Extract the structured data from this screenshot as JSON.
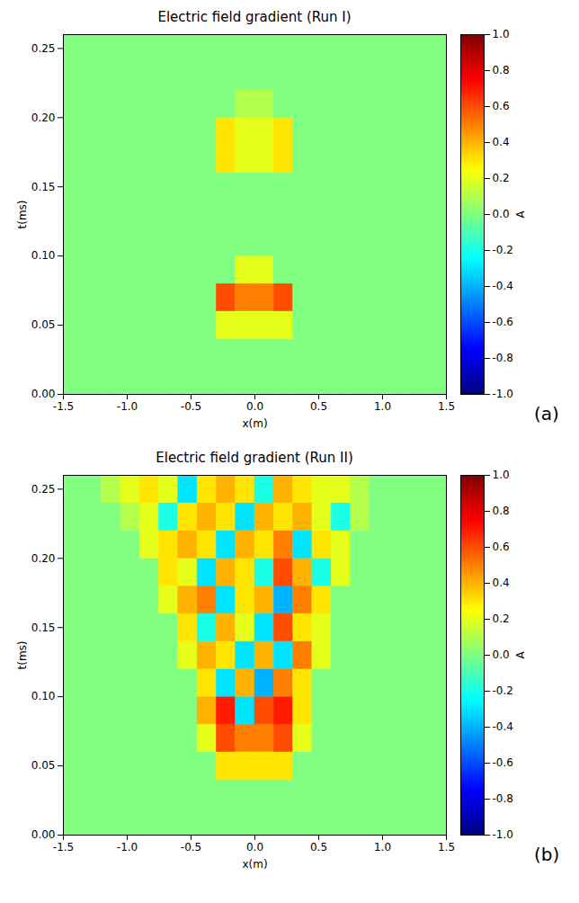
{
  "chart_data": [
    {
      "type": "heatmap",
      "title": "Electric field gradient (Run I)",
      "panel_label": "(a)",
      "x_label": "x(m)",
      "y_label": "t(ms)",
      "color": "jet",
      "xlim": [
        -1.5,
        1.5
      ],
      "xticks": [
        -1.5,
        {
          "value": -1,
          "label": "-1.0"
        },
        -0.5,
        {
          "value": 0,
          "label": "0.0"
        },
        0.5,
        {
          "value": 1,
          "label": "1.0"
        },
        1.5
      ],
      "ylim": [
        0,
        0.26
      ],
      "yticks": [
        {
          "value": 0,
          "label": "0.00"
        },
        0.05,
        {
          "value": 0.1,
          "label": "0.10"
        },
        0.15,
        {
          "value": 0.2,
          "label": "0.20"
        },
        0.25
      ],
      "x_bins": [
        -1.5,
        -1.35,
        -1.2,
        -1.05,
        -0.9,
        -0.75,
        -0.6,
        -0.45,
        -0.3,
        -0.15,
        0,
        0.15,
        0.3,
        0.45,
        0.6,
        0.75,
        0.9,
        1.05,
        1.2,
        1.35,
        1.5
      ],
      "y_bins": [
        0,
        0.02,
        0.04,
        0.06,
        0.08,
        0.1,
        0.12,
        0.14,
        0.16,
        0.18,
        0.2,
        0.22,
        0.24,
        0.26
      ],
      "values": [
        [
          0,
          0,
          0,
          0,
          0,
          0,
          0,
          0,
          0,
          0,
          0,
          0,
          0,
          0,
          0,
          0,
          0,
          0,
          0,
          0
        ],
        [
          0,
          0,
          0,
          0,
          0,
          0,
          0,
          0,
          0,
          0,
          0,
          0,
          0,
          0,
          0,
          0,
          0,
          0,
          0,
          0
        ],
        [
          0,
          0,
          0,
          0,
          0,
          0,
          0,
          0,
          0.2,
          0.2,
          0.2,
          0.2,
          0,
          0,
          0,
          0,
          0,
          0,
          0,
          0
        ],
        [
          0,
          0,
          0,
          0,
          0,
          0,
          0,
          0,
          0.6,
          0.5,
          0.5,
          0.6,
          0,
          0,
          0,
          0,
          0,
          0,
          0,
          0
        ],
        [
          0,
          0,
          0,
          0,
          0,
          0,
          0,
          0,
          0,
          0.2,
          0.2,
          0,
          0,
          0,
          0,
          0,
          0,
          0,
          0,
          0
        ],
        [
          0,
          0,
          0,
          0,
          0,
          0,
          0,
          0,
          0,
          0,
          0,
          0,
          0,
          0,
          0,
          0,
          0,
          0,
          0,
          0
        ],
        [
          0,
          0,
          0,
          0,
          0,
          0,
          0,
          0,
          0,
          0,
          0,
          0,
          0,
          0,
          0,
          0,
          0,
          0,
          0,
          0
        ],
        [
          0,
          0,
          0,
          0,
          0,
          0,
          0,
          0,
          0,
          0,
          0,
          0,
          0,
          0,
          0,
          0,
          0,
          0,
          0,
          0
        ],
        [
          0,
          0,
          0,
          0,
          0,
          0,
          0,
          0,
          0.3,
          0.2,
          0.2,
          0.3,
          0,
          0,
          0,
          0,
          0,
          0,
          0,
          0
        ],
        [
          0,
          0,
          0,
          0,
          0,
          0,
          0,
          0,
          0.3,
          0.2,
          0.2,
          0.3,
          0,
          0,
          0,
          0,
          0,
          0,
          0,
          0
        ],
        [
          0,
          0,
          0,
          0,
          0,
          0,
          0,
          0,
          0,
          0.1,
          0.1,
          0,
          0,
          0,
          0,
          0,
          0,
          0,
          0,
          0
        ],
        [
          0,
          0,
          0,
          0,
          0,
          0,
          0,
          0,
          0,
          0,
          0,
          0,
          0,
          0,
          0,
          0,
          0,
          0,
          0,
          0
        ],
        [
          0,
          0,
          0,
          0,
          0,
          0,
          0,
          0,
          0,
          0,
          0,
          0,
          0,
          0,
          0,
          0,
          0,
          0,
          0,
          0
        ]
      ],
      "colorbar": {
        "label": "A",
        "range": [
          -1,
          1
        ],
        "ticks": [
          {
            "value": -1,
            "label": "-1.0"
          },
          -0.8,
          -0.6,
          -0.4,
          -0.2,
          {
            "value": 0,
            "label": "0.0"
          },
          0.2,
          0.4,
          0.6,
          0.8,
          {
            "value": 1,
            "label": "1.0"
          }
        ]
      }
    },
    {
      "type": "heatmap",
      "title": "Electric field gradient (Run II)",
      "panel_label": "(b)",
      "x_label": "x(m)",
      "y_label": "t(ms)",
      "color": "jet",
      "xlim": [
        -1.5,
        1.5
      ],
      "xticks": [
        -1.5,
        {
          "value": -1,
          "label": "-1.0"
        },
        -0.5,
        {
          "value": 0,
          "label": "0.0"
        },
        0.5,
        {
          "value": 1,
          "label": "1.0"
        },
        1.5
      ],
      "ylim": [
        0,
        0.26
      ],
      "yticks": [
        {
          "value": 0,
          "label": "0.00"
        },
        0.05,
        {
          "value": 0.1,
          "label": "0.10"
        },
        0.15,
        {
          "value": 0.2,
          "label": "0.20"
        },
        0.25
      ],
      "x_bins": [
        -1.5,
        -1.35,
        -1.2,
        -1.05,
        -0.9,
        -0.75,
        -0.6,
        -0.45,
        -0.3,
        -0.15,
        0,
        0.15,
        0.3,
        0.45,
        0.6,
        0.75,
        0.9,
        1.05,
        1.2,
        1.35,
        1.5
      ],
      "y_bins": [
        0,
        0.02,
        0.04,
        0.06,
        0.08,
        0.1,
        0.12,
        0.14,
        0.16,
        0.18,
        0.2,
        0.22,
        0.24,
        0.26
      ],
      "values": [
        [
          0,
          0,
          0,
          0,
          0,
          0,
          0,
          0,
          0,
          0,
          0,
          0,
          0,
          0,
          0,
          0,
          0,
          0,
          0,
          0
        ],
        [
          0,
          0,
          0,
          0,
          0,
          0,
          0,
          0,
          0,
          0,
          0,
          0,
          0,
          0,
          0,
          0,
          0,
          0,
          0,
          0
        ],
        [
          0,
          0,
          0,
          0,
          0,
          0,
          0,
          0,
          0.3,
          0.3,
          0.3,
          0.3,
          0,
          0,
          0,
          0,
          0,
          0,
          0,
          0
        ],
        [
          0,
          0,
          0,
          0,
          0,
          0,
          0,
          0.2,
          0.6,
          0.5,
          0.5,
          0.6,
          0.2,
          0,
          0,
          0,
          0,
          0,
          0,
          0
        ],
        [
          0,
          0,
          0,
          0,
          0,
          0,
          0,
          0.4,
          0.7,
          -0.3,
          0.6,
          0.7,
          0.3,
          0,
          0,
          0,
          0,
          0,
          0,
          0
        ],
        [
          0,
          0,
          0,
          0,
          0,
          0,
          0,
          0.3,
          -0.3,
          0.4,
          -0.4,
          0.5,
          0.3,
          0,
          0,
          0,
          0,
          0,
          0,
          0
        ],
        [
          0,
          0,
          0,
          0,
          0,
          0,
          0.2,
          0.4,
          0.3,
          -0.3,
          0.4,
          -0.3,
          0.5,
          0.2,
          0,
          0,
          0,
          0,
          0,
          0
        ],
        [
          0,
          0,
          0,
          0,
          0,
          0,
          0.3,
          -0.2,
          0.4,
          0.2,
          -0.3,
          0.6,
          0.3,
          0.2,
          0,
          0,
          0,
          0,
          0,
          0
        ],
        [
          0,
          0,
          0,
          0,
          0,
          0.2,
          0.4,
          0.5,
          -0.3,
          0.3,
          0.4,
          -0.4,
          0.5,
          0.3,
          0,
          0,
          0,
          0,
          0,
          0
        ],
        [
          0,
          0,
          0,
          0,
          0,
          0.3,
          0.2,
          -0.3,
          0.4,
          0.3,
          -0.2,
          0.6,
          0.4,
          -0.2,
          0.2,
          0,
          0,
          0,
          0,
          0
        ],
        [
          0,
          0,
          0,
          0,
          0.2,
          0.3,
          0.4,
          0.3,
          -0.3,
          0.4,
          0.3,
          0.5,
          -0.3,
          0.3,
          0.2,
          0,
          0,
          0,
          0,
          0
        ],
        [
          0,
          0,
          0,
          0.1,
          0.2,
          -0.2,
          0.3,
          0.4,
          0.3,
          -0.3,
          0.4,
          0.3,
          0.4,
          0.2,
          -0.2,
          0.1,
          0,
          0,
          0,
          0
        ],
        [
          0,
          0,
          0.1,
          0.2,
          0.3,
          0.2,
          -0.3,
          0.3,
          0.4,
          0.3,
          -0.2,
          0.4,
          0.3,
          0.2,
          0.2,
          0.1,
          0,
          0,
          0,
          0
        ]
      ],
      "colorbar": {
        "label": "A",
        "range": [
          -1,
          1
        ],
        "ticks": [
          {
            "value": -1,
            "label": "-1.0"
          },
          -0.8,
          -0.6,
          -0.4,
          -0.2,
          {
            "value": 0,
            "label": "0.0"
          },
          0.2,
          0.4,
          0.6,
          0.8,
          {
            "value": 1,
            "label": "1.0"
          }
        ]
      }
    }
  ]
}
